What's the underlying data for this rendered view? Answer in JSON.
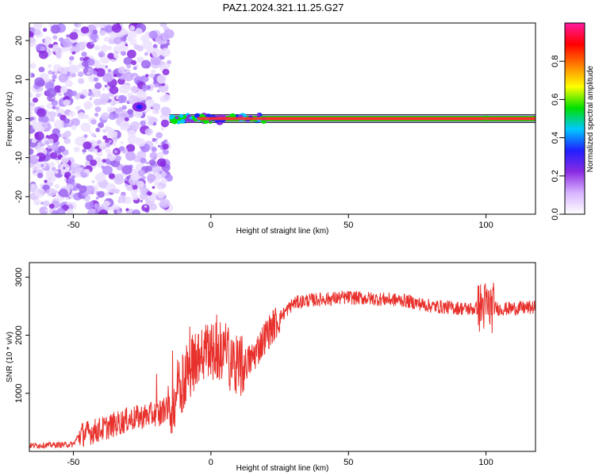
{
  "figure_title": "PAZ1.2024.321.11.25.G27",
  "chart_data": [
    {
      "type": "heatmap",
      "title": "",
      "xlabel": "Height of straight line (km)",
      "ylabel": "Frequency (Hz)",
      "xlim": [
        -66,
        118
      ],
      "ylim": [
        -24.5,
        24.5
      ],
      "xticks": [
        -50,
        0,
        50,
        100
      ],
      "yticks": [
        -20,
        -10,
        0,
        10,
        20
      ],
      "noise_region_x": [
        -66,
        -15
      ],
      "signal_band_hz": 0,
      "colorbar": {
        "label": "Normalized spectral amplitude",
        "range": [
          0,
          1
        ],
        "ticks": [
          0.0,
          0.2,
          0.4,
          0.6,
          0.8
        ],
        "colors": [
          "#ffffff",
          "#d8b4ff",
          "#8a2be2",
          "#2020ff",
          "#00c8ff",
          "#00e000",
          "#ffff00",
          "#ff8000",
          "#ff0000",
          "#ff1aa0"
        ]
      }
    },
    {
      "type": "line",
      "title": "",
      "xlabel": "Height of straight line (km)",
      "ylabel": "SNR (10 * v/v)",
      "xlim": [
        -66,
        118
      ],
      "ylim": [
        0,
        3250
      ],
      "xticks": [
        -50,
        0,
        50,
        100
      ],
      "yticks": [
        1000,
        2000,
        3000
      ],
      "color": "#e8312c",
      "envelope": {
        "x": [
          -66,
          -50,
          -48,
          -40,
          -30,
          -20,
          -15,
          -12,
          -8,
          -5,
          0,
          5,
          10,
          15,
          20,
          25,
          30,
          35,
          50,
          70,
          80,
          95,
          100,
          105,
          118
        ],
        "y": [
          100,
          120,
          280,
          380,
          550,
          650,
          750,
          1100,
          1400,
          1650,
          1750,
          1700,
          1400,
          1600,
          2000,
          2300,
          2550,
          2600,
          2650,
          2600,
          2500,
          2450,
          2500,
          2450,
          2480
        ]
      }
    }
  ]
}
